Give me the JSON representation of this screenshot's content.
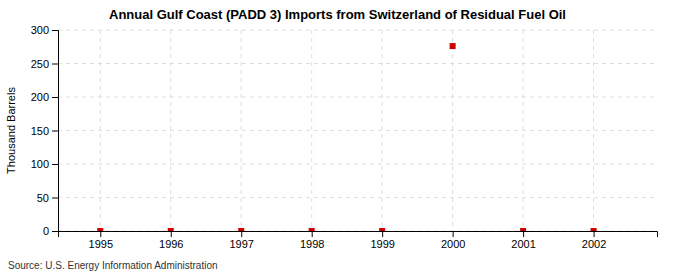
{
  "chart_data": {
    "type": "scatter",
    "title": "Annual Gulf Coast (PADD 3) Imports from Switzerland of Residual Fuel Oil",
    "y_label": "Thousand Barrels",
    "source": "Source: U.S. Energy Information Administration",
    "x": [
      1995,
      1996,
      1997,
      1998,
      1999,
      2000,
      2001,
      2002
    ],
    "values": [
      0,
      0,
      0,
      0,
      0,
      276,
      0,
      0
    ],
    "color": "#cc0000",
    "marker": "square",
    "xlim": [
      1994.4,
      2002.9
    ],
    "xticks": [
      1995,
      1996,
      1997,
      1998,
      1999,
      2000,
      2001,
      2002
    ],
    "ylim": [
      0,
      300
    ],
    "yticks": [
      0,
      50,
      100,
      150,
      200,
      250,
      300
    ],
    "grid": true
  }
}
